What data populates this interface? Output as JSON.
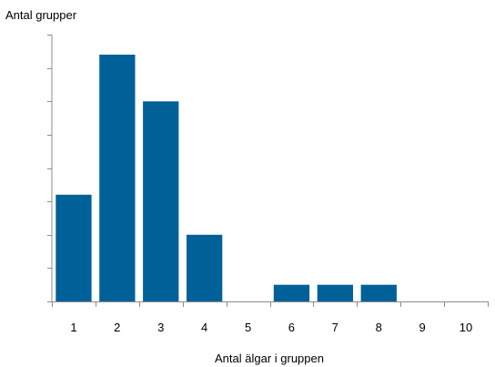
{
  "chart_data": {
    "type": "bar",
    "ylabel": "Antal grupper",
    "xlabel": "Antal älgar i gruppen",
    "categories": [
      "1",
      "2",
      "3",
      "4",
      "5",
      "6",
      "7",
      "8",
      "9",
      "10"
    ],
    "values": [
      16,
      37,
      30,
      10,
      0,
      2.5,
      2.5,
      2.5,
      0,
      0
    ],
    "ylim": [
      0,
      40
    ],
    "y_tick_step": 5,
    "y_tick_labels_shown": false,
    "grid": false,
    "legend": "none",
    "bar_color": "#006199"
  }
}
